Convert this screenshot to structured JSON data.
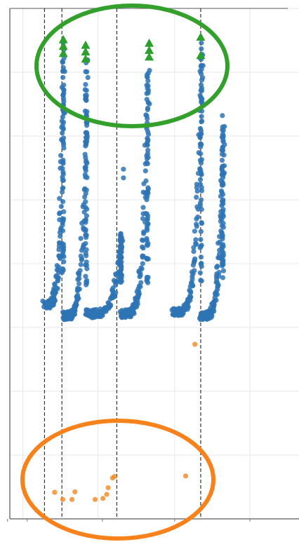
{
  "chart_data": {
    "type": "scatter",
    "title": "",
    "xlabel": "",
    "ylabel": "",
    "xlim": [
      0,
      100
    ],
    "ylim": [
      0,
      100
    ],
    "grid": true,
    "vlines": [
      12,
      18,
      37,
      66
    ],
    "colors": {
      "blue": "#2e74b5",
      "orange": "#f28e2b",
      "green": "#2ca02c",
      "highlight_green": "#33a02c",
      "highlight_orange": "#f7821b",
      "grid": "#e7e7e7",
      "axis": "#777777"
    },
    "series": [
      {
        "marker": "triangle",
        "color": "#2ca02c",
        "points": [
          [
            18.5,
            93.9
          ],
          [
            18.5,
            92.6
          ],
          [
            18.5,
            91.2
          ],
          [
            26.2,
            92.8
          ],
          [
            26.2,
            91.5
          ],
          [
            26.2,
            90.1
          ],
          [
            48.2,
            93.2
          ],
          [
            48.2,
            91.8
          ],
          [
            48.2,
            90.5
          ],
          [
            66.0,
            94.4
          ],
          [
            66.0,
            90.8
          ]
        ]
      },
      {
        "marker": "circle",
        "color": "#2e74b5",
        "segments": [
          {
            "x0": 12.0,
            "x1": 18.8,
            "y_low": 42.0,
            "y_high": 93.0
          },
          {
            "x0": 18.3,
            "x1": 26.8,
            "y_low": 39.8,
            "y_high": 90.0
          },
          {
            "x0": 26.2,
            "x1": 38.8,
            "y_low": 40.2,
            "y_high": 56.0
          },
          {
            "x0": 38.6,
            "x1": 48.0,
            "y_low": 40.2,
            "y_high": 88.0
          },
          {
            "x0": 56.5,
            "x1": 66.5,
            "y_low": 40.5,
            "y_high": 93.0
          },
          {
            "x0": 66.0,
            "x1": 74.0,
            "y_low": 39.8,
            "y_high": 77.0
          }
        ],
        "extra_points": [
          [
            39.3,
            68.5
          ],
          [
            39.3,
            66.8
          ],
          [
            73.5,
            79.0
          ],
          [
            73.5,
            76.2
          ],
          [
            73.5,
            66.0
          ],
          [
            73.0,
            60.2
          ]
        ]
      },
      {
        "marker": "circle",
        "color": "#f28e2b",
        "points": [
          [
            15.5,
            5.2
          ],
          [
            18.3,
            3.8
          ],
          [
            21.5,
            3.8
          ],
          [
            22.5,
            5.3
          ],
          [
            29.5,
            3.8
          ],
          [
            32.2,
            4.0
          ],
          [
            33.5,
            4.8
          ],
          [
            34.0,
            6.1
          ],
          [
            35.5,
            8.0
          ],
          [
            36.2,
            8.3
          ],
          [
            60.8,
            8.4
          ],
          [
            64.0,
            34.2
          ]
        ]
      }
    ]
  }
}
